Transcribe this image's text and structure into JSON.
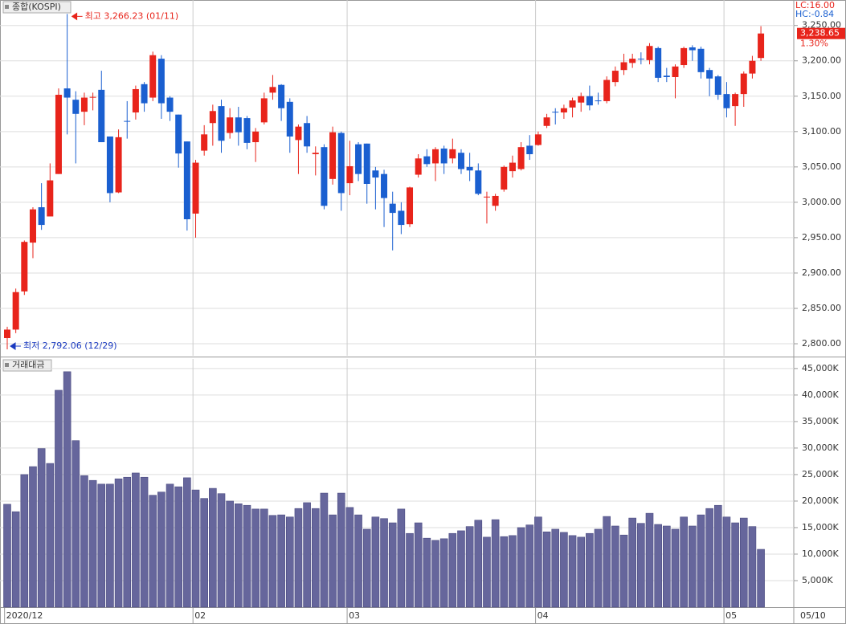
{
  "chart_data": [
    {
      "type": "candlestick",
      "title": "종합(KOSPI)",
      "categories": [
        "2020/12",
        null,
        null,
        null,
        null,
        null,
        null,
        null,
        null,
        null,
        null,
        null,
        null,
        null,
        null,
        null,
        null,
        null,
        null,
        null,
        null,
        null,
        "02",
        null,
        null,
        null,
        null,
        null,
        null,
        null,
        null,
        null,
        null,
        null,
        null,
        null,
        null,
        null,
        null,
        null,
        "03",
        null,
        null,
        null,
        null,
        null,
        null,
        null,
        null,
        null,
        null,
        null,
        null,
        null,
        null,
        null,
        null,
        null,
        null,
        null,
        null,
        null,
        "04",
        null,
        null,
        null,
        null,
        null,
        null,
        null,
        null,
        null,
        null,
        null,
        null,
        null,
        null,
        null,
        null,
        null,
        null,
        null,
        null,
        null,
        "05",
        null,
        null,
        null,
        null
      ],
      "open": [
        2808,
        2820,
        2874,
        2943,
        2993,
        2980,
        3040,
        3161,
        3145,
        3128,
        3148,
        3159,
        3093,
        3014,
        3115,
        3127,
        3167,
        3148,
        3203,
        3148,
        3124,
        3086,
        2984,
        3073,
        3112,
        3136,
        3098,
        3120,
        3119,
        3085,
        3113,
        3155,
        3166,
        3142,
        3088,
        3112,
        3068,
        3078,
        3033,
        3098,
        3027,
        3082,
        3083,
        3045,
        3040,
        2998,
        2988,
        2969,
        3039,
        3065,
        3055,
        3076,
        3062,
        3070,
        3050,
        3045,
        3007,
        2995,
        3018,
        3044,
        3047,
        3080,
        3081,
        3108,
        3128,
        3127,
        3134,
        3141,
        3150,
        3144,
        3143,
        3170,
        3187,
        3197,
        3203,
        3201,
        3218,
        3179,
        3177,
        3194,
        3219,
        3217,
        3187,
        3178,
        3153,
        3136,
        3153,
        3182,
        3204
      ],
      "high": [
        2824,
        2878,
        2946,
        2993,
        3027,
        3055,
        3161,
        3266.23,
        3157,
        3155,
        3155,
        3186,
        3093,
        3103,
        3143,
        3165,
        3170,
        3213,
        3208,
        3150,
        3124,
        3086,
        3060,
        3109,
        3138,
        3145,
        3133,
        3135,
        3122,
        3105,
        3155,
        3180,
        3167,
        3147,
        3110,
        3122,
        3079,
        3082,
        3107,
        3100,
        3087,
        3085,
        3083,
        3050,
        3046,
        3015,
        3000,
        3022,
        3068,
        3075,
        3078,
        3080,
        3090,
        3075,
        3070,
        3055,
        3015,
        3012,
        3052,
        3066,
        3085,
        3095,
        3100,
        3125,
        3133,
        3138,
        3148,
        3155,
        3165,
        3155,
        3178,
        3192,
        3210,
        3210,
        3212,
        3225,
        3220,
        3190,
        3195,
        3220,
        3222,
        3220,
        3190,
        3180,
        3170,
        3155,
        3185,
        3207,
        3249
      ],
      "low": [
        2792.06,
        2815,
        2869,
        2921,
        2961,
        2980,
        3040,
        3096,
        3055,
        3109,
        3130,
        3085,
        3000,
        3013,
        3090,
        3117,
        3128,
        3143,
        3118,
        3115,
        3049,
        2960,
        2950,
        3066,
        3080,
        3070,
        3090,
        3080,
        3075,
        3057,
        3110,
        3145,
        3115,
        3070,
        3040,
        3070,
        3038,
        2990,
        3025,
        2988,
        3010,
        3030,
        2998,
        2990,
        2965,
        2932,
        2955,
        2965,
        3035,
        3050,
        3030,
        3040,
        3055,
        3040,
        3030,
        3010,
        2970,
        2988,
        3015,
        3035,
        3045,
        3060,
        3080,
        3105,
        3110,
        3118,
        3120,
        3128,
        3130,
        3138,
        3140,
        3164,
        3180,
        3190,
        3195,
        3195,
        3170,
        3170,
        3147,
        3190,
        3200,
        3175,
        3150,
        3145,
        3120,
        3108,
        3135,
        3175,
        3200
      ],
      "close": [
        2820,
        2873,
        2944,
        2990,
        2968,
        3031,
        3152,
        3148,
        3125,
        3148,
        3149,
        3085,
        3013,
        3092,
        3114,
        3160,
        3140,
        3208,
        3140,
        3128,
        3069,
        2976,
        3056,
        3096,
        3129,
        3087,
        3120,
        3099,
        3084,
        3100,
        3147,
        3163,
        3133,
        3093,
        3107,
        3079,
        3070,
        2995,
        3099,
        3013,
        3051,
        3040,
        3026,
        3035,
        3006,
        2985,
        2968,
        3021,
        3062,
        3054,
        3075,
        3055,
        3075,
        3047,
        3045,
        3012,
        3008,
        3009,
        3050,
        3056,
        3078,
        3068,
        3096,
        3120,
        3127,
        3133,
        3144,
        3150,
        3137,
        3143,
        3173,
        3186,
        3198,
        3203,
        3202,
        3221,
        3176,
        3177,
        3192,
        3218,
        3215,
        3184,
        3175,
        3152,
        3133,
        3153,
        3182,
        3200,
        3238.65
      ],
      "up_color": "#e8241b",
      "down_color": "#1a5fd0",
      "ylim": [
        2783,
        3286
      ],
      "yticks": [
        {
          "value": 2800,
          "label": "2,800.00"
        },
        {
          "value": 2850,
          "label": "2,850.00"
        },
        {
          "value": 2900,
          "label": "2,900.00"
        },
        {
          "value": 2950,
          "label": "2,950.00"
        },
        {
          "value": 3000,
          "label": "3,000.00"
        },
        {
          "value": 3050,
          "label": "3,050.00"
        },
        {
          "value": 3100,
          "label": "3,100.00"
        },
        {
          "value": 3150,
          "label": "3,150.00"
        },
        {
          "value": 3200,
          "label": "3,200.00"
        },
        {
          "value": 3250,
          "label": "3,250.00"
        }
      ],
      "grid": true,
      "high_label": "최고 3,266.23 (01/11)",
      "low_label": "최저 2,792.06 (12/29)",
      "lc_label": "LC:16.00",
      "hc_label": "HC:-0.84",
      "last_label": "3,238.65",
      "change_label": "1.30%",
      "date_label": "05/10"
    },
    {
      "type": "bar",
      "title": "거래대금",
      "values": [
        19400,
        18000,
        25000,
        26500,
        29900,
        27100,
        40900,
        44400,
        31400,
        24800,
        23900,
        23200,
        23200,
        24200,
        24500,
        25300,
        24500,
        21100,
        21700,
        23200,
        22700,
        24400,
        22100,
        20500,
        22400,
        21400,
        20000,
        19500,
        19200,
        18500,
        18500,
        17300,
        17400,
        17000,
        18600,
        19700,
        18600,
        21500,
        17400,
        21500,
        18800,
        17400,
        14700,
        17000,
        16700,
        15900,
        18500,
        13900,
        15900,
        13000,
        12600,
        12900,
        13900,
        14400,
        15200,
        16400,
        13200,
        16500,
        13300,
        13500,
        15000,
        15500,
        17000,
        14200,
        14700,
        14100,
        13500,
        13200,
        13900,
        14700,
        17100,
        15300,
        13600,
        16800,
        15800,
        17700,
        15600,
        15300,
        14700,
        17000,
        15300,
        17400,
        18600,
        19200,
        17000,
        15900,
        16800,
        15200,
        10900
      ],
      "color": "#66669c",
      "ylim": [
        0,
        46800
      ],
      "yticks": [
        {
          "value": 5000,
          "label": "5,000K"
        },
        {
          "value": 10000,
          "label": "10,000K"
        },
        {
          "value": 15000,
          "label": "15,000K"
        },
        {
          "value": 20000,
          "label": "20,000K"
        },
        {
          "value": 25000,
          "label": "25,000K"
        },
        {
          "value": 30000,
          "label": "30,000K"
        },
        {
          "value": 35000,
          "label": "35,000K"
        },
        {
          "value": 40000,
          "label": "40,000K"
        },
        {
          "value": 45000,
          "label": "45,000K"
        }
      ],
      "grid": true
    }
  ]
}
